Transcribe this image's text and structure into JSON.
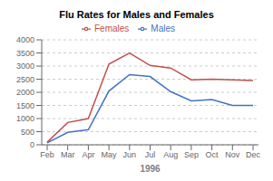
{
  "chart_data": {
    "type": "line",
    "title": "Flu Rates for Males and Females",
    "xlabel": "1996",
    "categories": [
      "Feb",
      "Mar",
      "Apr",
      "May",
      "Jun",
      "Jul",
      "Aug",
      "Sep",
      "Oct",
      "Nov",
      "Dec"
    ],
    "series": [
      {
        "name": "Males",
        "color": "#4472C4",
        "values": [
          75,
          475,
          575,
          2050,
          2675,
          2600,
          2025,
          1675,
          1725,
          1500,
          1500
        ]
      },
      {
        "name": "Females",
        "color": "#C0504D",
        "values": [
          100,
          850,
          1000,
          3075,
          3500,
          3025,
          2925,
          2475,
          2500,
          2475,
          2450
        ]
      }
    ],
    "ylim": [
      0,
      4000
    ],
    "yticks": [
      0,
      500,
      1000,
      1500,
      2000,
      2500,
      3000,
      3500,
      4000
    ],
    "grid": true,
    "legend": "top"
  }
}
